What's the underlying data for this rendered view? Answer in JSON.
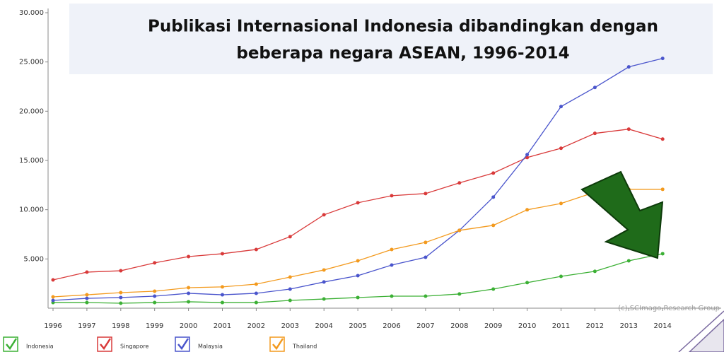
{
  "chart_data": {
    "type": "line",
    "title": [
      "Publikasi Internasional Indonesia dibandingkan dengan",
      "beberapa negara ASEAN, 1996-2014"
    ],
    "annotation": "(c) SCImago Research Group",
    "categories": [
      "1996",
      "1997",
      "1998",
      "1999",
      "2000",
      "2001",
      "2002",
      "2003",
      "2004",
      "2005",
      "2006",
      "2007",
      "2008",
      "2009",
      "2010",
      "2011",
      "2012",
      "2013",
      "2014"
    ],
    "series": [
      {
        "name": "Indonesia",
        "color": "#3cb035",
        "values": [
          570,
          570,
          500,
          570,
          650,
          570,
          570,
          790,
          930,
          1080,
          1220,
          1220,
          1440,
          1940,
          2590,
          3230,
          3740,
          4810,
          5530
        ]
      },
      {
        "name": "Singapore",
        "color": "#d93a3a",
        "values": [
          2870,
          3660,
          3800,
          4600,
          5240,
          5530,
          5960,
          7260,
          9480,
          10700,
          11420,
          11640,
          12720,
          13720,
          15300,
          16240,
          17750,
          18180,
          17170
        ]
      },
      {
        "name": "Malaysia",
        "color": "#4a55cc",
        "values": [
          790,
          1000,
          1080,
          1220,
          1510,
          1360,
          1510,
          1940,
          2660,
          3300,
          4380,
          5170,
          7900,
          11280,
          15590,
          20470,
          22410,
          24500,
          25360
        ]
      },
      {
        "name": "Thailand",
        "color": "#f39a1e",
        "values": [
          1150,
          1360,
          1580,
          1720,
          2080,
          2160,
          2440,
          3160,
          3880,
          4810,
          5960,
          6680,
          7900,
          8410,
          9990,
          10630,
          11780,
          12070,
          12070
        ]
      }
    ],
    "ylim": [
      0,
      30000
    ],
    "yticks": [
      {
        "value": 5000,
        "label": "5.000"
      },
      {
        "value": 10000,
        "label": "10.000"
      },
      {
        "value": 15000,
        "label": "15.000"
      },
      {
        "value": 20000,
        "label": "20.000"
      },
      {
        "value": 25000,
        "label": "25.000"
      },
      {
        "value": 30000,
        "label": "30.000"
      }
    ],
    "grid": false,
    "legend": "bottom-left"
  }
}
